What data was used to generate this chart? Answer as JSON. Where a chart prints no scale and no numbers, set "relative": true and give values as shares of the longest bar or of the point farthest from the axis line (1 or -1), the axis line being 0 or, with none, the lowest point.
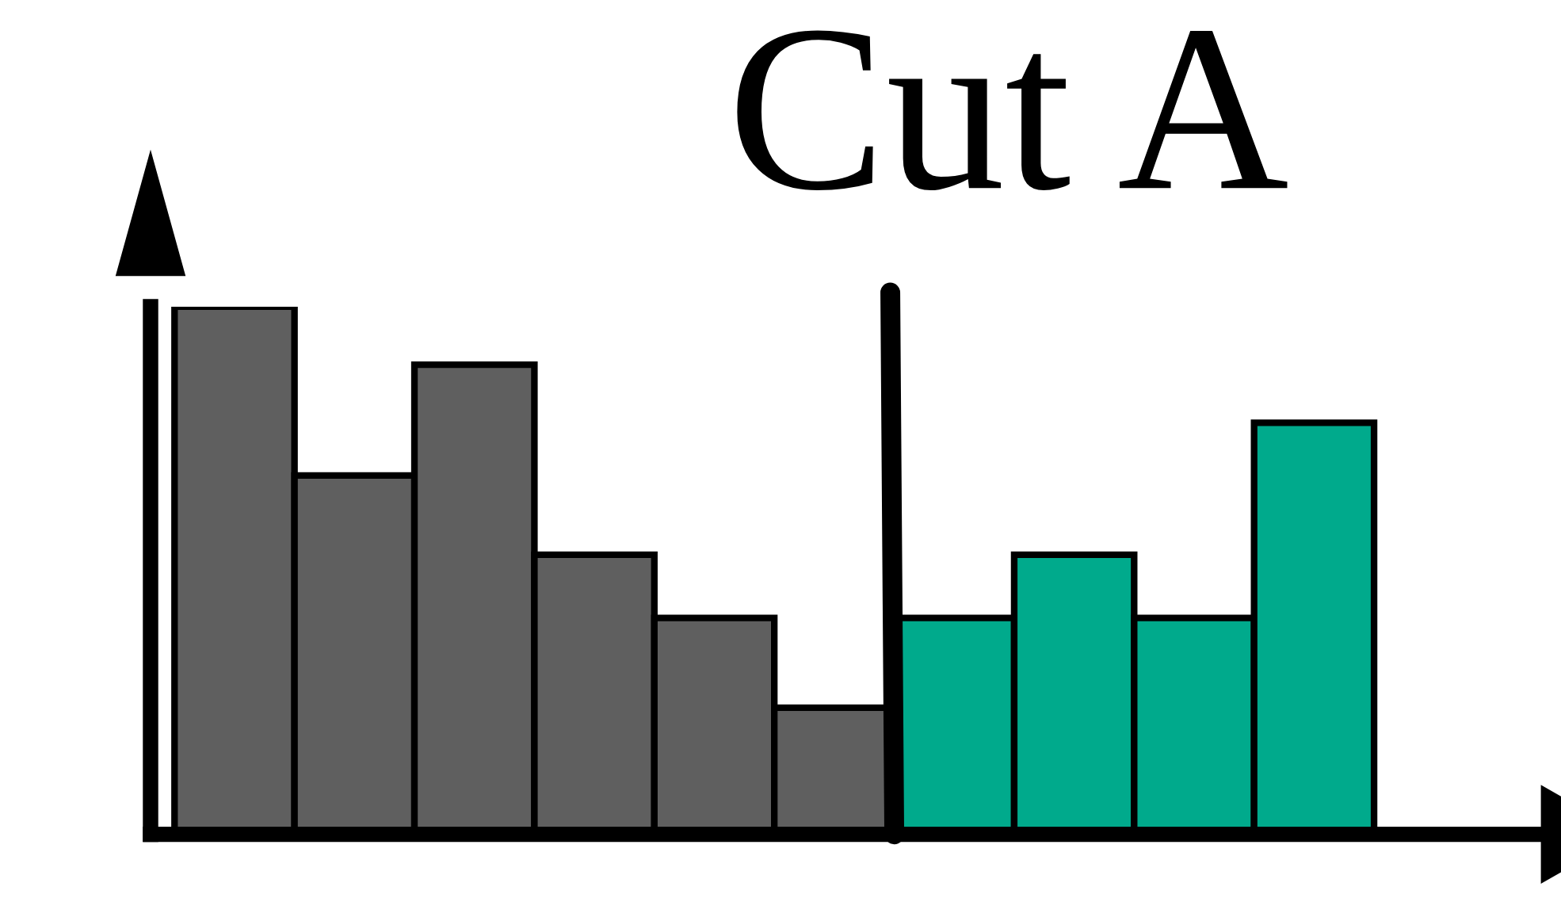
{
  "chart_data": {
    "type": "bar",
    "relative": true,
    "categories": [
      null,
      null,
      null,
      null,
      null,
      null,
      null,
      null,
      null,
      null
    ],
    "values": [
      1,
      0.68,
      0.89,
      0.53,
      0.41,
      0.24,
      0.41,
      0.53,
      0.41,
      0.78
    ],
    "colors": [
      "#5f5f5f",
      "#5f5f5f",
      "#5f5f5f",
      "#5f5f5f",
      "#5f5f5f",
      "#5f5f5f",
      "#00aa8c",
      "#00aa8c",
      "#00aa8c",
      "#00aa8c"
    ],
    "annotations": [
      "Cut A"
    ],
    "grid": false,
    "legend": false
  }
}
